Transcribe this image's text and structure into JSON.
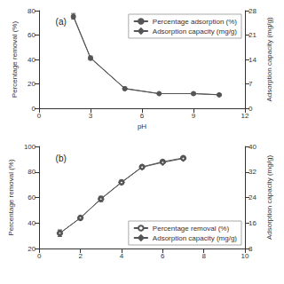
{
  "chart_data": [
    {
      "type": "line",
      "annotations": [
        "(a)"
      ],
      "xlabel": "pH",
      "ylabel": "Percentage removal (%)",
      "y2label": "Adsorption capacity (mg/g)",
      "xlim": [
        0,
        12
      ],
      "xticks": [
        0,
        3,
        6,
        9,
        12
      ],
      "ylim": [
        0,
        80
      ],
      "yticks": [
        0,
        20,
        40,
        60,
        80
      ],
      "y2lim": [
        0,
        28
      ],
      "y2ticks": [
        0,
        7,
        14,
        21,
        28
      ],
      "grid": false,
      "legend": "upper right",
      "series": [
        {
          "name": "Percentage adsorption (%)",
          "color": "#555555",
          "marker": "circle",
          "x": [
            2,
            3,
            5,
            7,
            9,
            10.5
          ],
          "values": [
            75,
            41,
            16,
            12,
            12,
            11
          ],
          "yerr": [
            2.0,
            1.5,
            1.2,
            0.8,
            1.0,
            0.8
          ]
        },
        {
          "name": "Adsorption capacity (mg/g)",
          "color": "#555555",
          "marker": "diamond",
          "axis": "y2",
          "x": [
            2,
            3,
            5,
            7,
            9,
            10.5
          ],
          "values": [
            26.5,
            14.5,
            5.7,
            4.2,
            4.2,
            3.9
          ],
          "yerr": [
            0.7,
            0.5,
            0.4,
            0.3,
            0.35,
            0.3
          ]
        }
      ]
    },
    {
      "type": "line",
      "annotations": [
        "(b)"
      ],
      "ylabel": "Percentage removal (%)",
      "y2label": "Adsorption capacity (mg/g)",
      "xlim": [
        0,
        10
      ],
      "xticks": [
        0,
        2,
        4,
        6,
        8,
        10
      ],
      "ylim": [
        20,
        100
      ],
      "yticks": [
        20,
        40,
        60,
        80,
        100
      ],
      "y2lim": [
        8,
        40
      ],
      "y2ticks": [
        8,
        16,
        24,
        32,
        40
      ],
      "grid": false,
      "legend": "lower right",
      "series": [
        {
          "name": "Percentage removal (%)",
          "color": "#555555",
          "marker": "open_circle",
          "x": [
            1,
            2,
            3,
            4,
            5,
            6,
            7
          ],
          "values": [
            32,
            44,
            59,
            72,
            84,
            88,
            91
          ],
          "yerr": [
            2.5,
            1.5,
            2.0,
            1.5,
            1.2,
            1.0,
            1.0
          ]
        },
        {
          "name": "Adsorption capacity (mg/g)",
          "color": "#555555",
          "marker": "open_diamond",
          "axis": "y2",
          "x": [
            1,
            2,
            3,
            4,
            5,
            6,
            7
          ],
          "values": [
            12.8,
            17.6,
            23.5,
            28.7,
            33.5,
            35.0,
            36.2
          ],
          "yerr": [
            1.0,
            0.6,
            0.8,
            0.6,
            0.5,
            0.4,
            0.4
          ]
        }
      ]
    }
  ]
}
